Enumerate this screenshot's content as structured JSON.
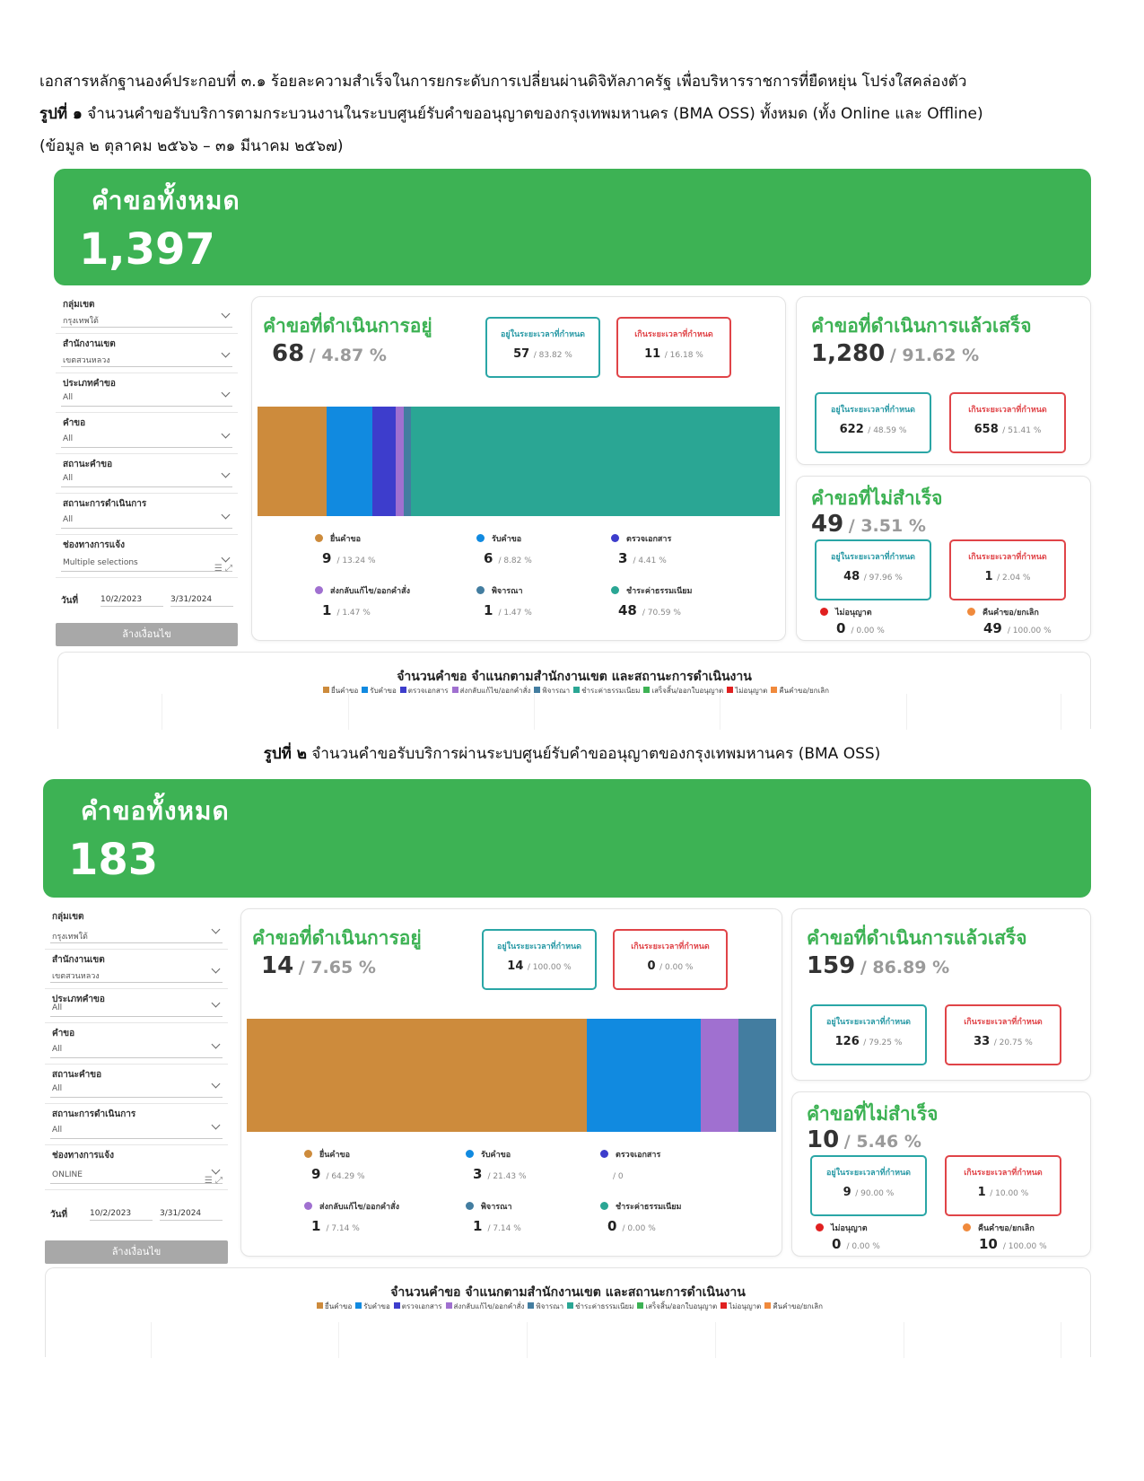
{
  "document": {
    "line1": "เอกสารหลักฐานองค์ประกอบที่ ๓.๑ ร้อยละความสำเร็จในการยกระดับการเปลี่ยนผ่านดิจิทัลภาครัฐ เพื่อบริหารราชการที่ยืดหยุ่น โปร่งใสคล่องตัว",
    "fig1_label": "รูปที่ ๑",
    "fig1_text": " จำนวนคำขอรับบริการตามกระบวนงานในระบบศูนย์รับคำขออนุญาตของกรุงเทพมหานคร (BMA OSS) ทั้งหมด (ทั้ง Online และ Offline)",
    "fig1_period": "(ข้อมูล ๒ ตุลาคม ๒๕๖๖ – ๓๑ มีนาคม ๒๕๖๗)",
    "fig2_label": "รูปที่ ๒",
    "fig2_text": " จำนวนคำขอรับบริการผ่านระบบศูนย์รับคำขออนุญาตของกรุงเทพมหานคร (BMA OSS)"
  },
  "dashboards": [
    {
      "banner": {
        "title": "คำขอทั้งหมด",
        "value": "1,397"
      },
      "filters": [
        {
          "label": "กลุ่มเขต",
          "value": "กรุงเทพใต้"
        },
        {
          "label": "สำนักงานเขต",
          "value": "เขตสวนหลวง"
        },
        {
          "label": "ประเภทคำขอ",
          "value": "All"
        },
        {
          "label": "คำขอ",
          "value": "All"
        },
        {
          "label": "สถานะคำขอ",
          "value": "All"
        },
        {
          "label": "สถานะการดำเนินการ",
          "value": "All"
        },
        {
          "label": "ช่องทางการแจ้ง",
          "value": "Multiple selections"
        }
      ],
      "date_label": "วันที่",
      "date_from": "10/2/2023",
      "date_to": "3/31/2024",
      "clear_label": "ล้างเงื่อนไข",
      "in_progress": {
        "title": "คำขอที่ดำเนินการอยู่",
        "count": "68",
        "pct": "/ 4.87 %",
        "within": {
          "label": "อยู่ในระยะเวลาที่กำหนด",
          "value": "57",
          "pct": "/ 83.82 %"
        },
        "over": {
          "label": "เกินระยะเวลาที่กำหนด",
          "value": "11",
          "pct": "/ 16.18 %"
        },
        "bar": [
          {
            "name": "ยื่นคำขอ",
            "value": 9,
            "color": "#cd8b3c"
          },
          {
            "name": "รับคำขอ",
            "value": 6,
            "color": "#118ae0"
          },
          {
            "name": "ตรวจเอกสาร",
            "value": 3,
            "color": "#3d3dcc"
          },
          {
            "name": "ส่งกลับแก้ไข/ออกคำสั่ง",
            "value": 1,
            "color": "#a070d0"
          },
          {
            "name": "พิจารณา",
            "value": 1,
            "color": "#437da0"
          },
          {
            "name": "ชำระค่าธรรมเนียม",
            "value": 48,
            "color": "#2aa694"
          }
        ],
        "legend": [
          {
            "name": "ยื่นคำขอ",
            "value": "9",
            "pct": "/ 13.24 %",
            "color": "#cd8b3c"
          },
          {
            "name": "รับคำขอ",
            "value": "6",
            "pct": "/ 8.82 %",
            "color": "#118ae0"
          },
          {
            "name": "ตรวจเอกสาร",
            "value": "3",
            "pct": "/ 4.41 %",
            "color": "#3d3dcc"
          },
          {
            "name": "ส่งกลับแก้ไข/ออกคำสั่ง",
            "value": "1",
            "pct": "/ 1.47 %",
            "color": "#a070d0"
          },
          {
            "name": "พิจารณา",
            "value": "1",
            "pct": "/ 1.47 %",
            "color": "#437da0"
          },
          {
            "name": "ชำระค่าธรรมเนียม",
            "value": "48",
            "pct": "/ 70.59 %",
            "color": "#2aa694"
          }
        ]
      },
      "completed": {
        "title": "คำขอที่ดำเนินการแล้วเสร็จ",
        "count": "1,280",
        "pct": "/ 91.62 %",
        "within": {
          "label": "อยู่ในระยะเวลาที่กำหนด",
          "value": "622",
          "pct": "/ 48.59 %"
        },
        "over": {
          "label": "เกินระยะเวลาที่กำหนด",
          "value": "658",
          "pct": "/ 51.41 %"
        }
      },
      "failed": {
        "title": "คำขอที่ไม่สำเร็จ",
        "count": "49",
        "pct": "/ 3.51 %",
        "within": {
          "label": "อยู่ในระยะเวลาที่กำหนด",
          "value": "48",
          "pct": "/ 97.96 %"
        },
        "over": {
          "label": "เกินระยะเวลาที่กำหนด",
          "value": "1",
          "pct": "/ 2.04 %"
        },
        "denied": {
          "label": "ไม่อนุญาต",
          "value": "0",
          "pct": "/ 0.00 %",
          "color": "#e02020"
        },
        "returned": {
          "label": "คืนคำขอ/ยกเลิก",
          "value": "49",
          "pct": "/ 100.00 %",
          "color": "#f08a3c"
        }
      },
      "bottom": {
        "title": "จำนวนคำขอ  จำแนกตามสำนักงานเขต และสถานะการดำเนินงาน",
        "legend": [
          {
            "name": "ยื่นคำขอ",
            "color": "#cd8b3c"
          },
          {
            "name": "รับคำขอ",
            "color": "#118ae0"
          },
          {
            "name": "ตรวจเอกสาร",
            "color": "#3d3dcc"
          },
          {
            "name": "ส่งกลับแก้ไข/ออกคำสั่ง",
            "color": "#a070d0"
          },
          {
            "name": "พิจารณา",
            "color": "#437da0"
          },
          {
            "name": "ชำระค่าธรรมเนียม",
            "color": "#2aa694"
          },
          {
            "name": "เสร็จสิ้น/ออกใบอนุญาต",
            "color": "#3db254"
          },
          {
            "name": "ไม่อนุญาต",
            "color": "#e02020"
          },
          {
            "name": "คืนคำขอ/ยกเลิก",
            "color": "#f08a3c"
          }
        ]
      }
    },
    {
      "banner": {
        "title": "คำขอทั้งหมด",
        "value": "183"
      },
      "filters": [
        {
          "label": "กลุ่มเขต",
          "value": "กรุงเทพใต้"
        },
        {
          "label": "สำนักงานเขต",
          "value": "เขตสวนหลวง"
        },
        {
          "label": "ประเภทคำขอ",
          "value": "All"
        },
        {
          "label": "คำขอ",
          "value": "All"
        },
        {
          "label": "สถานะคำขอ",
          "value": "All"
        },
        {
          "label": "สถานะการดำเนินการ",
          "value": "All"
        },
        {
          "label": "ช่องทางการแจ้ง",
          "value": "ONLINE"
        }
      ],
      "date_label": "วันที่",
      "date_from": "10/2/2023",
      "date_to": "3/31/2024",
      "clear_label": "ล้างเงื่อนไข",
      "in_progress": {
        "title": "คำขอที่ดำเนินการอยู่",
        "count": "14",
        "pct": "/ 7.65 %",
        "within": {
          "label": "อยู่ในระยะเวลาที่กำหนด",
          "value": "14",
          "pct": "/ 100.00 %"
        },
        "over": {
          "label": "เกินระยะเวลาที่กำหนด",
          "value": "0",
          "pct": "/ 0.00 %"
        },
        "bar": [
          {
            "name": "ยื่นคำขอ",
            "value": 9,
            "color": "#cd8b3c"
          },
          {
            "name": "รับคำขอ",
            "value": 3,
            "color": "#118ae0"
          },
          {
            "name": "ส่งกลับแก้ไข/ออกคำสั่ง",
            "value": 1,
            "color": "#a070d0"
          },
          {
            "name": "พิจารณา",
            "value": 1,
            "color": "#437da0"
          }
        ],
        "legend": [
          {
            "name": "ยื่นคำขอ",
            "value": "9",
            "pct": "/ 64.29 %",
            "color": "#cd8b3c"
          },
          {
            "name": "รับคำขอ",
            "value": "3",
            "pct": "/ 21.43 %",
            "color": "#118ae0"
          },
          {
            "name": "ตรวจเอกสาร",
            "value": "",
            "pct": "/ 0",
            "color": "#3d3dcc"
          },
          {
            "name": "ส่งกลับแก้ไข/ออกคำสั่ง",
            "value": "1",
            "pct": "/ 7.14 %",
            "color": "#a070d0"
          },
          {
            "name": "พิจารณา",
            "value": "1",
            "pct": "/ 7.14 %",
            "color": "#437da0"
          },
          {
            "name": "ชำระค่าธรรมเนียม",
            "value": "0",
            "pct": "/ 0.00 %",
            "color": "#2aa694"
          }
        ]
      },
      "completed": {
        "title": "คำขอที่ดำเนินการแล้วเสร็จ",
        "count": "159",
        "pct": "/ 86.89 %",
        "within": {
          "label": "อยู่ในระยะเวลาที่กำหนด",
          "value": "126",
          "pct": "/ 79.25 %"
        },
        "over": {
          "label": "เกินระยะเวลาที่กำหนด",
          "value": "33",
          "pct": "/ 20.75 %"
        }
      },
      "failed": {
        "title": "คำขอที่ไม่สำเร็จ",
        "count": "10",
        "pct": "/ 5.46 %",
        "within": {
          "label": "อยู่ในระยะเวลาที่กำหนด",
          "value": "9",
          "pct": "/ 90.00 %"
        },
        "over": {
          "label": "เกินระยะเวลาที่กำหนด",
          "value": "1",
          "pct": "/ 10.00 %"
        },
        "denied": {
          "label": "ไม่อนุญาต",
          "value": "0",
          "pct": "/ 0.00 %",
          "color": "#e02020"
        },
        "returned": {
          "label": "คืนคำขอ/ยกเลิก",
          "value": "10",
          "pct": "/ 100.00 %",
          "color": "#f08a3c"
        }
      },
      "bottom": {
        "title": "จำนวนคำขอ  จำแนกตามสำนักงานเขต และสถานะการดำเนินงาน",
        "legend": [
          {
            "name": "ยื่นคำขอ",
            "color": "#cd8b3c"
          },
          {
            "name": "รับคำขอ",
            "color": "#118ae0"
          },
          {
            "name": "ตรวจเอกสาร",
            "color": "#3d3dcc"
          },
          {
            "name": "ส่งกลับแก้ไข/ออกคำสั่ง",
            "color": "#a070d0"
          },
          {
            "name": "พิจารณา",
            "color": "#437da0"
          },
          {
            "name": "ชำระค่าธรรมเนียม",
            "color": "#2aa694"
          },
          {
            "name": "เสร็จสิ้น/ออกใบอนุญาต",
            "color": "#3db254"
          },
          {
            "name": "ไม่อนุญาต",
            "color": "#e02020"
          },
          {
            "name": "คืนคำขอ/ยกเลิก",
            "color": "#f08a3c"
          }
        ]
      }
    }
  ]
}
